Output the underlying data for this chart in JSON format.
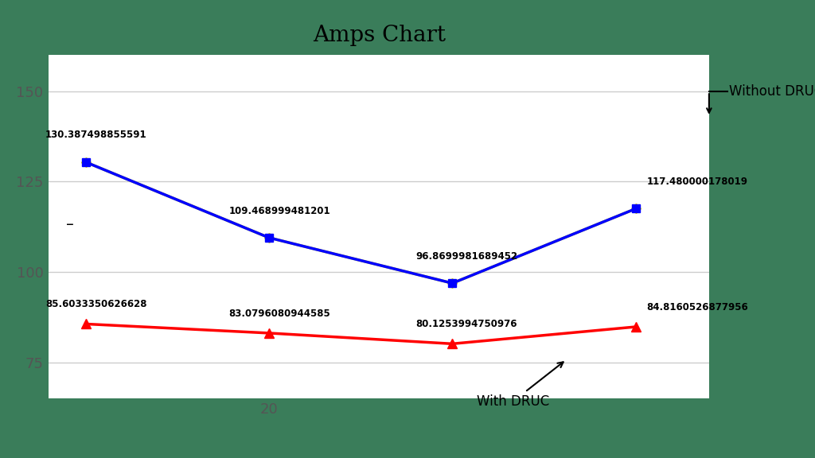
{
  "title": "Amps Chart",
  "plot_bg_color": "#ffffff",
  "outer_bg_color": "#3a7d5a",
  "x_values": [
    0,
    1,
    2,
    3
  ],
  "x_tick_labels": [
    "",
    "20",
    "",
    ""
  ],
  "blue_values": [
    130.387498855591,
    109.468999481201,
    96.8699981689452,
    117.480000178019
  ],
  "yellow_values": [
    130.387498855591,
    109.468999481201,
    96.8699981689452,
    117.480000178019
  ],
  "red_values": [
    85.6033350626628,
    83.0796080944585,
    80.1253994750976,
    84.8160526877956
  ],
  "blue_color": "#0000ff",
  "yellow_color": "#dddd00",
  "red_color": "#ff0000",
  "label_upper": [
    "130.387498855591",
    "109.468999481201",
    "96.8699981689452",
    "117.480000178019"
  ],
  "label_lower": [
    "85.6033350626628",
    "83.0796080944585",
    "80.1253994750976",
    "84.8160526877956"
  ],
  "ylim": [
    65,
    160
  ],
  "yticks": [
    75,
    100,
    125,
    150
  ],
  "annotation_without": "Without DRUC",
  "annotation_with": "With DRUC"
}
